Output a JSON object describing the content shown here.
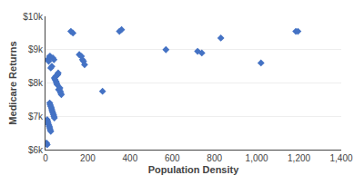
{
  "chart_data": {
    "type": "scatter",
    "x": [
      10,
      15,
      20,
      22,
      25,
      30,
      35,
      40,
      42,
      45,
      48,
      50,
      52,
      55,
      58,
      60,
      62,
      65,
      68,
      70,
      72,
      75,
      20,
      22,
      25,
      28,
      30,
      32,
      35,
      38,
      40,
      42,
      8,
      10,
      12,
      15,
      18,
      20,
      22,
      25,
      5,
      8,
      120,
      130,
      160,
      170,
      175,
      180,
      185,
      270,
      350,
      360,
      570,
      720,
      740,
      830,
      1020,
      1185,
      1195
    ],
    "values": [
      8700,
      8650,
      8800,
      8800,
      8450,
      8500,
      8750,
      8700,
      8150,
      8100,
      8200,
      8050,
      8000,
      7950,
      8250,
      8300,
      7800,
      7800,
      7850,
      7750,
      7700,
      7650,
      7400,
      7350,
      7300,
      7250,
      7200,
      7150,
      7100,
      7050,
      7000,
      6950,
      6900,
      6850,
      6800,
      6750,
      6700,
      6650,
      6600,
      6550,
      6200,
      6150,
      9550,
      9500,
      8850,
      8800,
      8700,
      8650,
      8550,
      7750,
      9550,
      9600,
      9000,
      8950,
      8900,
      9350,
      8600,
      9550,
      9550
    ],
    "color": "#4472C4",
    "marker": "diamond",
    "xlabel": "Population Density",
    "ylabel": "Medicare Returns",
    "xlim": [
      0,
      1400
    ],
    "ylim": [
      6000,
      10000
    ],
    "xticks": [
      0,
      200,
      400,
      600,
      800,
      {
        "value": 1000,
        "label": "1,000"
      },
      {
        "value": 1200,
        "label": "1,200"
      },
      {
        "value": 1400,
        "label": "1,400"
      }
    ],
    "yticks": [
      {
        "value": 6000,
        "label": "$6k"
      },
      {
        "value": 7000,
        "label": "$7k"
      },
      {
        "value": 8000,
        "label": "$8k"
      },
      {
        "value": 9000,
        "label": "$9k"
      },
      {
        "value": 10000,
        "label": "$10k"
      }
    ],
    "grid": "y"
  }
}
